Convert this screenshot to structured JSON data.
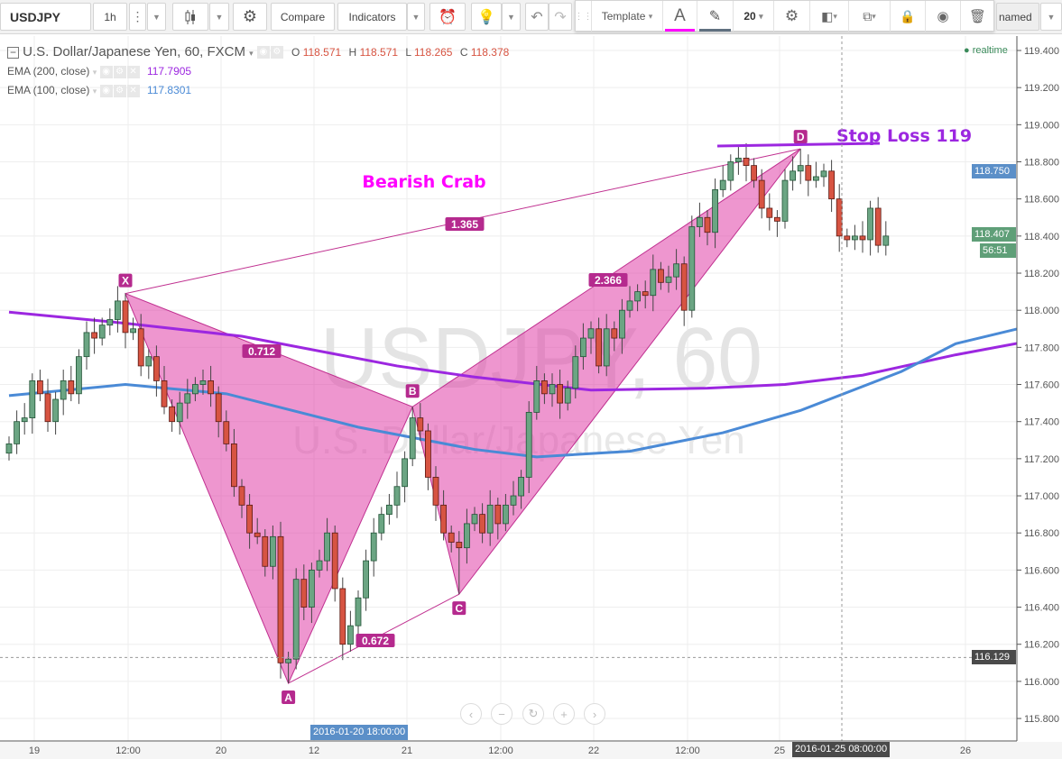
{
  "toolbar": {
    "symbol": "USDJPY",
    "interval": "1h",
    "compare": "Compare",
    "indicators": "Indicators",
    "drawing": {
      "template": "Template",
      "font_size": "20",
      "text_color": "#ff00ff",
      "line_color": "#607080"
    },
    "layout_name": "named"
  },
  "legend": {
    "title": "U.S. Dollar/Japanese Yen, 60, FXCM",
    "o_label": "O",
    "o": "118.571",
    "h_label": "H",
    "h": "118.571",
    "l_label": "L",
    "l": "118.265",
    "c_label": "C",
    "c": "118.378",
    "ema200": {
      "label": "EMA (200, close)",
      "value": "117.7905",
      "color": "#9c27e0"
    },
    "ema100": {
      "label": "EMA (100, close)",
      "value": "117.8301",
      "color": "#4a8ad6"
    },
    "realtime": "realtime"
  },
  "watermark": {
    "symbol": "USDJPY, 60",
    "name": "U.S. Dollar/Japanese Yen"
  },
  "chart_data": {
    "type": "candlestick",
    "price_ticks": [
      "119.400",
      "119.200",
      "119.000",
      "118.800",
      "118.600",
      "118.400",
      "118.200",
      "118.000",
      "117.800",
      "117.600",
      "117.400",
      "117.200",
      "117.000",
      "116.800",
      "116.600",
      "116.400",
      "116.200",
      "116.000",
      "115.800"
    ],
    "ylim": [
      115.7,
      119.5
    ],
    "time_ticks": [
      "19",
      "12:00",
      "20",
      "12",
      "21",
      "12:00",
      "22",
      "12:00",
      "25",
      "26"
    ],
    "colors": {
      "up": "#6ba583",
      "down": "#d75442",
      "pattern": "#e040a8"
    },
    "closes": [
      117.28,
      117.4,
      117.42,
      117.62,
      117.55,
      117.4,
      117.52,
      117.62,
      117.55,
      117.75,
      117.88,
      117.85,
      117.92,
      117.95,
      118.05,
      117.88,
      117.9,
      117.7,
      117.75,
      117.62,
      117.48,
      117.4,
      117.5,
      117.55,
      117.6,
      117.62,
      117.55,
      117.4,
      117.28,
      117.05,
      116.95,
      116.8,
      116.78,
      116.62,
      116.78,
      116.1,
      116.12,
      116.55,
      116.4,
      116.6,
      116.65,
      116.8,
      116.5,
      116.2,
      116.3,
      116.45,
      116.65,
      116.8,
      116.9,
      116.95,
      117.05,
      117.2,
      117.42,
      117.35,
      117.1,
      116.95,
      116.8,
      116.75,
      116.72,
      116.85,
      116.9,
      116.8,
      116.95,
      116.85,
      116.95,
      117.0,
      117.1,
      117.45,
      117.62,
      117.55,
      117.6,
      117.5,
      117.58,
      117.75,
      117.85,
      117.9,
      117.7,
      117.9,
      117.85,
      118.0,
      118.05,
      118.1,
      118.08,
      118.22,
      118.15,
      118.18,
      118.25,
      118.0,
      118.45,
      118.5,
      118.42,
      118.65,
      118.7,
      118.8,
      118.82,
      118.78,
      118.7,
      118.55,
      118.5,
      118.48,
      118.7,
      118.75,
      118.78,
      118.7,
      118.72,
      118.75,
      118.6,
      118.4,
      118.38,
      118.4,
      118.38,
      118.55,
      118.35,
      118.4
    ],
    "ema200": [
      [
        0,
        117.99
      ],
      [
        15,
        117.93
      ],
      [
        30,
        117.86
      ],
      [
        50,
        117.7
      ],
      [
        60,
        117.64
      ],
      [
        75,
        117.57
      ],
      [
        90,
        117.58
      ],
      [
        100,
        117.6
      ],
      [
        110,
        117.65
      ],
      [
        122,
        117.76
      ],
      [
        131,
        117.83
      ]
    ],
    "ema100": [
      [
        0,
        117.54
      ],
      [
        15,
        117.6
      ],
      [
        28,
        117.55
      ],
      [
        45,
        117.37
      ],
      [
        60,
        117.25
      ],
      [
        68,
        117.21
      ],
      [
        80,
        117.24
      ],
      [
        92,
        117.34
      ],
      [
        102,
        117.46
      ],
      [
        115,
        117.67
      ],
      [
        122,
        117.82
      ],
      [
        131,
        117.91
      ]
    ],
    "pattern": {
      "name": "Bearish Crab",
      "points": [
        {
          "label": "X",
          "i": 15,
          "price": 118.09
        },
        {
          "label": "A",
          "i": 36,
          "price": 115.99
        },
        {
          "label": "B",
          "i": 52,
          "price": 117.48
        },
        {
          "label": "C",
          "i": 58,
          "price": 116.47
        },
        {
          "label": "D",
          "i": 102,
          "price": 118.87
        }
      ],
      "ratios": {
        "XB": "0.712",
        "AC": "0.672",
        "XD": "1.365",
        "BD": "2.366"
      }
    },
    "stop_loss": {
      "label": "Stop Loss 119",
      "price": 118.89
    },
    "crosshair": {
      "price": "116.129",
      "time": "2016-01-20 18:00:00"
    },
    "cursor_time": "2016-01-25 08:00:00",
    "last_price": "118.407",
    "countdown": "56:51",
    "alert_price": "118.750"
  }
}
